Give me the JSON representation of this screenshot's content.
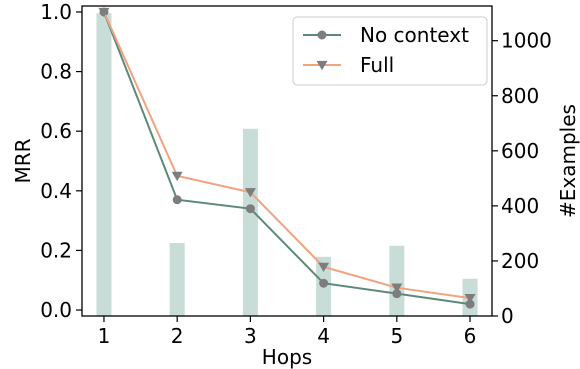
{
  "chart_data": {
    "type": "bar+line",
    "x": [
      1,
      2,
      3,
      4,
      5,
      6
    ],
    "xlabel": "Hops",
    "ylabel_left": "MRR",
    "ylabel_right": "#Examples",
    "ylim_left": [
      -0.02,
      1.02
    ],
    "ylim_right": [
      0,
      1126
    ],
    "yticks_left": [
      "0.0",
      "0.2",
      "0.4",
      "0.6",
      "0.8",
      "1.0"
    ],
    "yticks_right": [
      "0",
      "200",
      "400",
      "600",
      "800",
      "1000"
    ],
    "xticks": [
      "1",
      "2",
      "3",
      "4",
      "5",
      "6"
    ],
    "bars": {
      "axis": "right",
      "values": [
        1100,
        265,
        680,
        215,
        255,
        135
      ],
      "color": "#c8dcd8"
    },
    "series": [
      {
        "name": "No context",
        "values": [
          1.0,
          0.37,
          0.34,
          0.09,
          0.055,
          0.02
        ],
        "color": "#5c8a78",
        "marker": "circle",
        "marker_color": "#7d7d7d"
      },
      {
        "name": "Full",
        "values": [
          1.0,
          0.45,
          0.395,
          0.145,
          0.075,
          0.04
        ],
        "color": "#f0a37e",
        "marker": "triangle-down",
        "marker_color": "#7d7d7d"
      }
    ],
    "legend": "top-right",
    "grid": false
  }
}
